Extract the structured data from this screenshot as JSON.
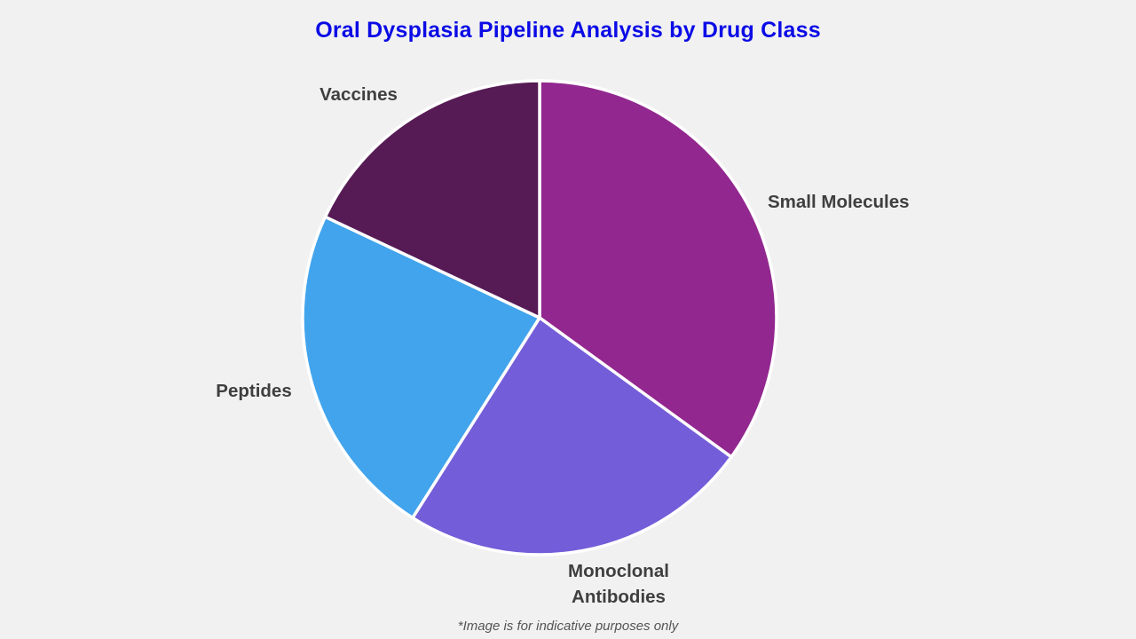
{
  "title": "Oral Dysplasia Pipeline Analysis by Drug Class",
  "footnote": "*Image is for indicative purposes only",
  "colors": {
    "background": "#F1F1F2",
    "title_text": "#0B0BE6",
    "label_text": "#3F3F3F",
    "footnote_text": "#555555",
    "slice_gap": "#FFFFFF"
  },
  "chart_data": {
    "type": "pie",
    "title": "Oral Dysplasia Pipeline Analysis by Drug Class",
    "categories": [
      "Small Molecules",
      "Monoclonal Antibodies",
      "Peptides",
      "Vaccines"
    ],
    "values": [
      35,
      24,
      23,
      18
    ],
    "unit": "percent-share (estimated from slice angles)",
    "colors": [
      "#92278F",
      "#745DD9",
      "#42A4EC",
      "#561B55"
    ],
    "start_angle_deg": 0,
    "direction": "clockwise",
    "legend": "none",
    "data_labels": "category names placed outside slices",
    "footnote": "*Image is for indicative purposes only"
  }
}
